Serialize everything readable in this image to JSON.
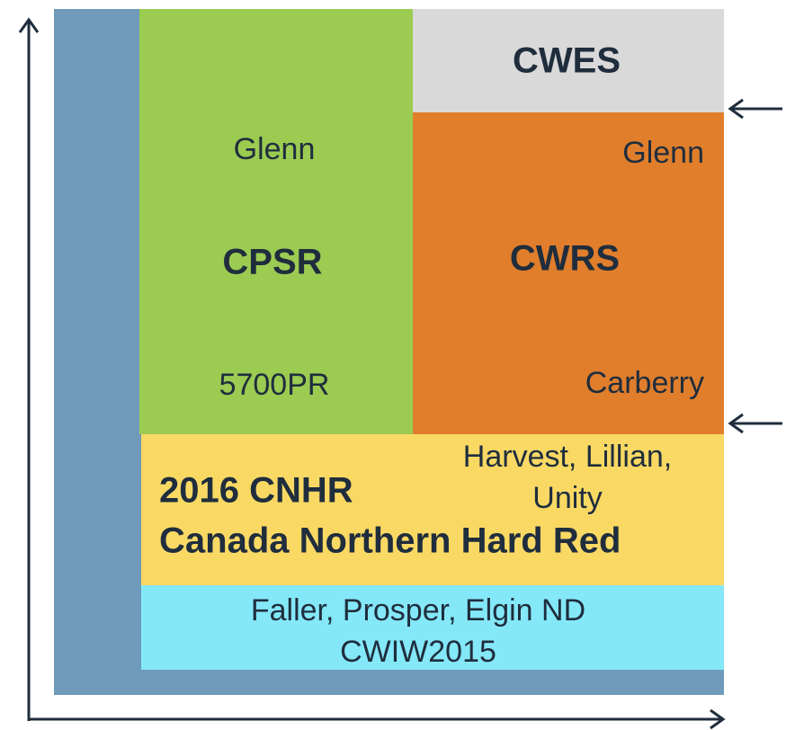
{
  "blocks": {
    "cwes": {
      "name": "CWES"
    },
    "cpsr": {
      "name": "CPSR",
      "top": "Glenn",
      "bottom": "5700PR"
    },
    "cwrs": {
      "name": "CWRS",
      "top": "Glenn",
      "bottom": "Carberry"
    },
    "cnhr": {
      "name_line1": "2016 CNHR",
      "name_line2": "Canada Northern Hard Red",
      "varieties_line1": "Harvest, Lillian,",
      "varieties_line2": "Unity"
    },
    "cwiw": {
      "line1": "Faller, Prosper, Elgin ND",
      "line2": "CWIW2015"
    }
  }
}
